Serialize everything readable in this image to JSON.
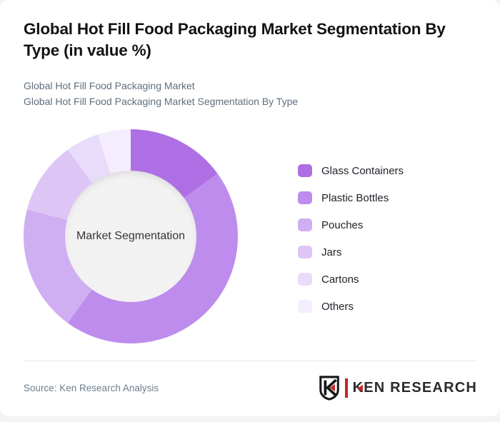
{
  "page": {
    "background_color": "#f3f3f5",
    "card_background_color": "#ffffff"
  },
  "header": {
    "title": "Global Hot Fill Food Packaging Market Segmentation By Type (in value %)",
    "subtitle_line1": "Global Hot Fill Food Packaging Market",
    "subtitle_line2": "Global Hot Fill Food Packaging Market Segmentation By Type"
  },
  "chart_data": {
    "type": "pie",
    "variant": "donut",
    "title": "Global Hot Fill Food Packaging Market Segmentation By Type (in value %)",
    "center_label": "Market Segmentation",
    "unit": "% of market value (values estimated from arc angles, not labeled on chart)",
    "categories": [
      "Glass Containers",
      "Plastic Bottles",
      "Pouches",
      "Jars",
      "Cartons",
      "Others"
    ],
    "values": [
      15,
      45,
      19,
      11,
      5,
      5
    ],
    "colors": [
      "#ad6fe3",
      "#bd8cec",
      "#cfaef2",
      "#ddc6f6",
      "#e9dbfa",
      "#f4edfd"
    ],
    "start_angle_deg": 0,
    "direction": "clockwise",
    "legend_position": "right",
    "inner_circle_color": "#f2f2f3"
  },
  "footer": {
    "source": "Source: Ken Research Analysis",
    "brand_name": "KEN RESEARCH",
    "brand_letter": "K",
    "brand_accent_color": "#c2262b",
    "brand_text_color": "#2b2b2e"
  }
}
